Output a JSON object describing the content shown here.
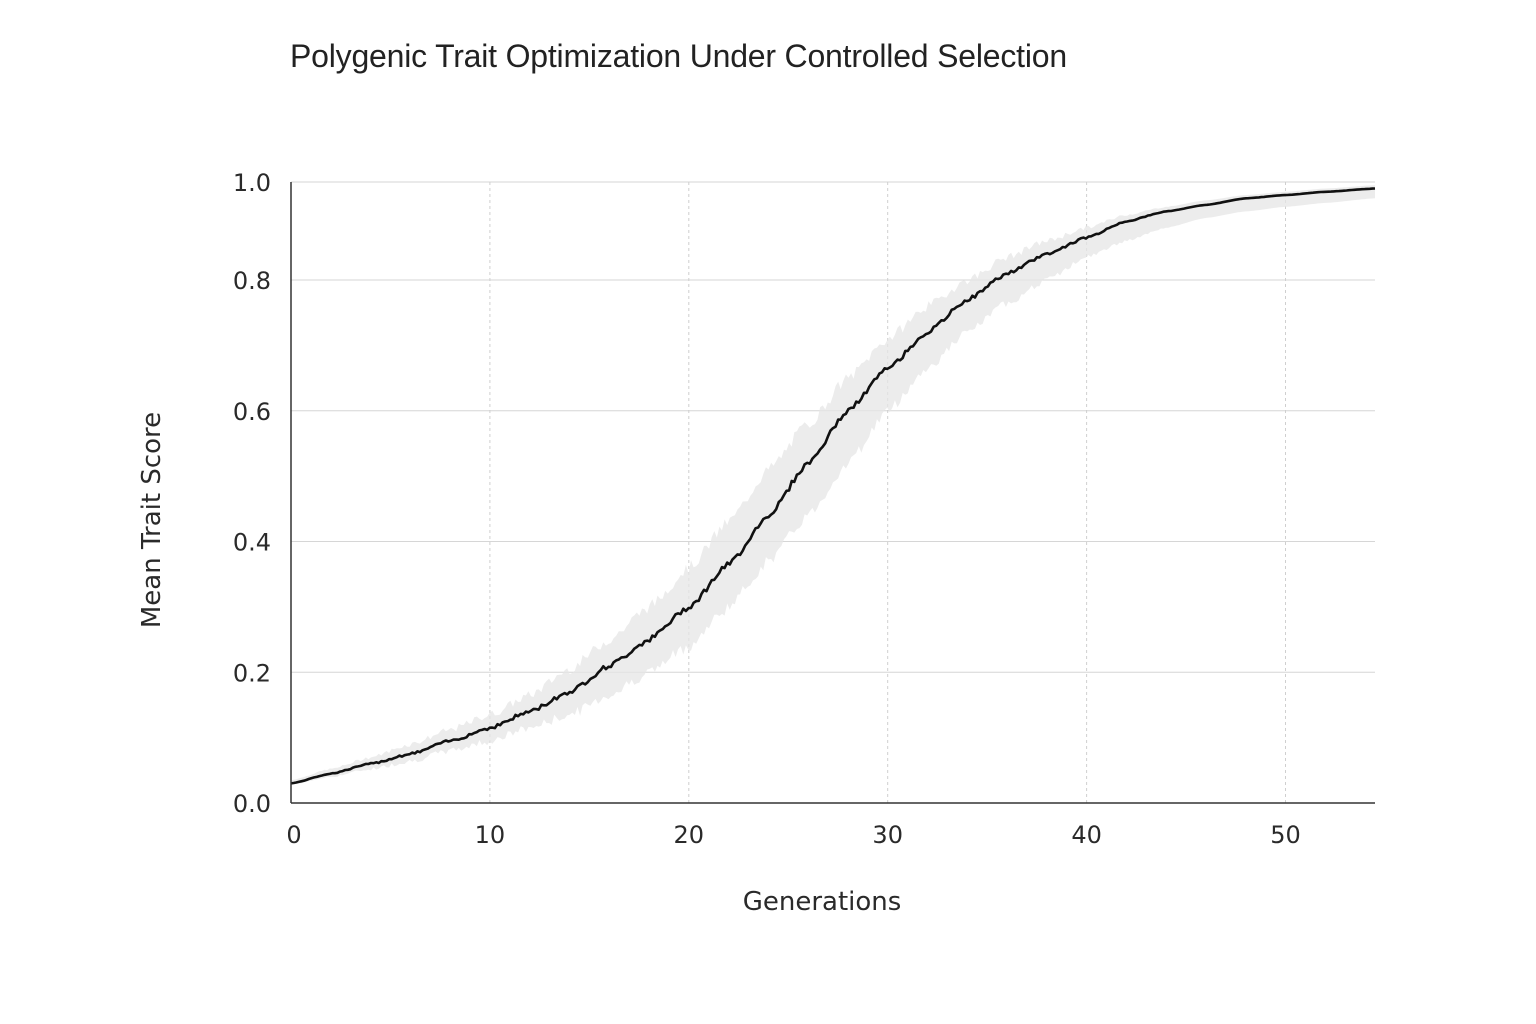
{
  "chart_data": {
    "type": "line",
    "title": "Polygenic Trait Optimization Under Controlled Selection",
    "xlabel": "Generations",
    "ylabel": "Mean Trait Score",
    "xlim": [
      0,
      54.5
    ],
    "ylim": [
      0,
      0.95
    ],
    "x_ticks": [
      0,
      10,
      20,
      30,
      40,
      50
    ],
    "x_tick_labels": [
      "0",
      "10",
      "20",
      "30",
      "40",
      "50"
    ],
    "y_ticks": [
      0.0,
      0.2,
      0.4,
      0.6,
      0.8,
      0.95
    ],
    "y_tick_labels": [
      "0.0",
      "0.2",
      "0.4",
      "0.6",
      "0.8",
      "1.0"
    ],
    "grid": true,
    "legend": "none",
    "line_color": "#111111",
    "band_color": "#e6e6e6",
    "series": [
      {
        "x": [
          0,
          2,
          4,
          6,
          8,
          10,
          12,
          14,
          16,
          18,
          20,
          22,
          24,
          26,
          28,
          30,
          32,
          34,
          36,
          38,
          40,
          42,
          44,
          46,
          48,
          50,
          52,
          54.5
        ],
        "values": [
          0.03,
          0.045,
          0.06,
          0.075,
          0.095,
          0.115,
          0.14,
          0.17,
          0.21,
          0.25,
          0.3,
          0.365,
          0.44,
          0.52,
          0.6,
          0.665,
          0.72,
          0.77,
          0.81,
          0.84,
          0.865,
          0.89,
          0.905,
          0.915,
          0.925,
          0.93,
          0.935,
          0.94
        ],
        "band_upper": [
          0.035,
          0.052,
          0.07,
          0.09,
          0.112,
          0.135,
          0.165,
          0.205,
          0.25,
          0.3,
          0.36,
          0.43,
          0.51,
          0.58,
          0.65,
          0.71,
          0.76,
          0.8,
          0.835,
          0.86,
          0.88,
          0.9,
          0.912,
          0.922,
          0.93,
          0.935,
          0.94,
          0.945
        ],
        "band_lower": [
          0.028,
          0.04,
          0.052,
          0.064,
          0.08,
          0.095,
          0.115,
          0.135,
          0.165,
          0.2,
          0.24,
          0.3,
          0.37,
          0.44,
          0.52,
          0.6,
          0.665,
          0.72,
          0.765,
          0.8,
          0.835,
          0.86,
          0.88,
          0.895,
          0.905,
          0.912,
          0.918,
          0.925
        ]
      }
    ]
  }
}
